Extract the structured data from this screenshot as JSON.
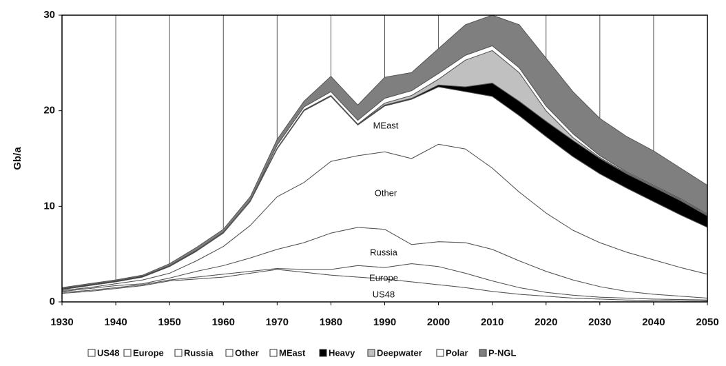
{
  "chart_data": {
    "type": "stacked-area",
    "ylabel": "Gb/a",
    "x": [
      1930,
      1935,
      1940,
      1945,
      1950,
      1955,
      1960,
      1965,
      1970,
      1975,
      1980,
      1985,
      1990,
      1995,
      2000,
      2005,
      2010,
      2015,
      2020,
      2025,
      2030,
      2035,
      2040,
      2045,
      2050
    ],
    "series": [
      {
        "name": "US48",
        "color": "#ffffff",
        "values": [
          0.9,
          1.1,
          1.4,
          1.7,
          2.2,
          2.4,
          2.6,
          3.0,
          3.4,
          3.1,
          2.8,
          2.6,
          2.4,
          2.1,
          1.8,
          1.5,
          1.1,
          0.8,
          0.6,
          0.4,
          0.3,
          0.2,
          0.15,
          0.1,
          0.1
        ]
      },
      {
        "name": "Europe",
        "color": "#ffffff",
        "values": [
          0.1,
          0.1,
          0.1,
          0.1,
          0.1,
          0.2,
          0.3,
          0.2,
          0.1,
          0.3,
          0.6,
          1.2,
          1.2,
          1.9,
          1.9,
          1.5,
          1.1,
          0.7,
          0.4,
          0.3,
          0.2,
          0.2,
          0.15,
          0.15,
          0.1
        ]
      },
      {
        "name": "Russia",
        "color": "#ffffff",
        "values": [
          0.1,
          0.2,
          0.2,
          0.1,
          0.2,
          0.6,
          0.9,
          1.4,
          2.0,
          2.8,
          3.8,
          4.0,
          4.0,
          2.0,
          2.6,
          3.2,
          3.3,
          2.8,
          2.2,
          1.6,
          1.1,
          0.7,
          0.5,
          0.35,
          0.2
        ]
      },
      {
        "name": "Other",
        "color": "#ffffff",
        "values": [
          0.1,
          0.1,
          0.2,
          0.4,
          0.5,
          1.1,
          2.0,
          3.4,
          5.5,
          6.3,
          7.5,
          7.5,
          8.1,
          9.0,
          10.2,
          9.8,
          8.5,
          7.2,
          6.1,
          5.2,
          4.6,
          4.1,
          3.6,
          3.0,
          2.5
        ]
      },
      {
        "name": "MEast",
        "color": "#ffffff",
        "values": [
          0.1,
          0.2,
          0.2,
          0.3,
          0.7,
          1.0,
          1.4,
          2.5,
          5.0,
          7.5,
          6.8,
          3.2,
          4.8,
          6.2,
          6.0,
          6.0,
          7.5,
          8.0,
          8.0,
          7.7,
          7.2,
          6.7,
          6.1,
          5.5,
          4.9
        ]
      },
      {
        "name": "Heavy",
        "color": "#000000",
        "values": [
          0.1,
          0.1,
          0.1,
          0.1,
          0.1,
          0.1,
          0.1,
          0.1,
          0.1,
          0.1,
          0.1,
          0.1,
          0.1,
          0.1,
          0.2,
          0.5,
          1.4,
          1.5,
          1.6,
          1.7,
          1.6,
          1.5,
          1.5,
          1.5,
          1.2
        ]
      },
      {
        "name": "Deepwater",
        "color": "#c0c0c0",
        "values": [
          0,
          0,
          0,
          0,
          0,
          0,
          0,
          0,
          0,
          0,
          0,
          0,
          0.2,
          0.3,
          0.6,
          2.8,
          3.4,
          3.0,
          1.1,
          0.3,
          0.1,
          0.1,
          0.1,
          0.1,
          0.1
        ]
      },
      {
        "name": "Polar",
        "color": "#ffffff",
        "values": [
          0,
          0,
          0,
          0,
          0,
          0,
          0,
          0,
          0.3,
          0.3,
          0.4,
          0.4,
          0.5,
          0.5,
          0.6,
          0.5,
          0.5,
          0.5,
          0.5,
          0.4,
          0.2,
          0.1,
          0.1,
          0.1,
          0.1
        ]
      },
      {
        "name": "P-NGL",
        "color": "#7f7f7f",
        "values": [
          0.1,
          0.1,
          0.1,
          0.1,
          0.2,
          0.3,
          0.3,
          0.4,
          0.6,
          0.6,
          1.6,
          1.6,
          2.2,
          1.9,
          2.6,
          3.2,
          3.2,
          4.5,
          5.0,
          4.4,
          3.9,
          3.7,
          3.6,
          3.2,
          3.0
        ]
      }
    ],
    "annotations": [
      "MEast",
      "Other",
      "Russia",
      "Europe",
      "US48"
    ],
    "xlim": [
      1930,
      2050
    ],
    "xticks": [
      1930,
      1940,
      1950,
      1960,
      1970,
      1980,
      1990,
      2000,
      2010,
      2020,
      2030,
      2040,
      2050
    ],
    "ylim": [
      0,
      30
    ],
    "yticks": [
      0,
      10,
      20,
      30
    ],
    "grid": true,
    "legend": "bottom"
  }
}
